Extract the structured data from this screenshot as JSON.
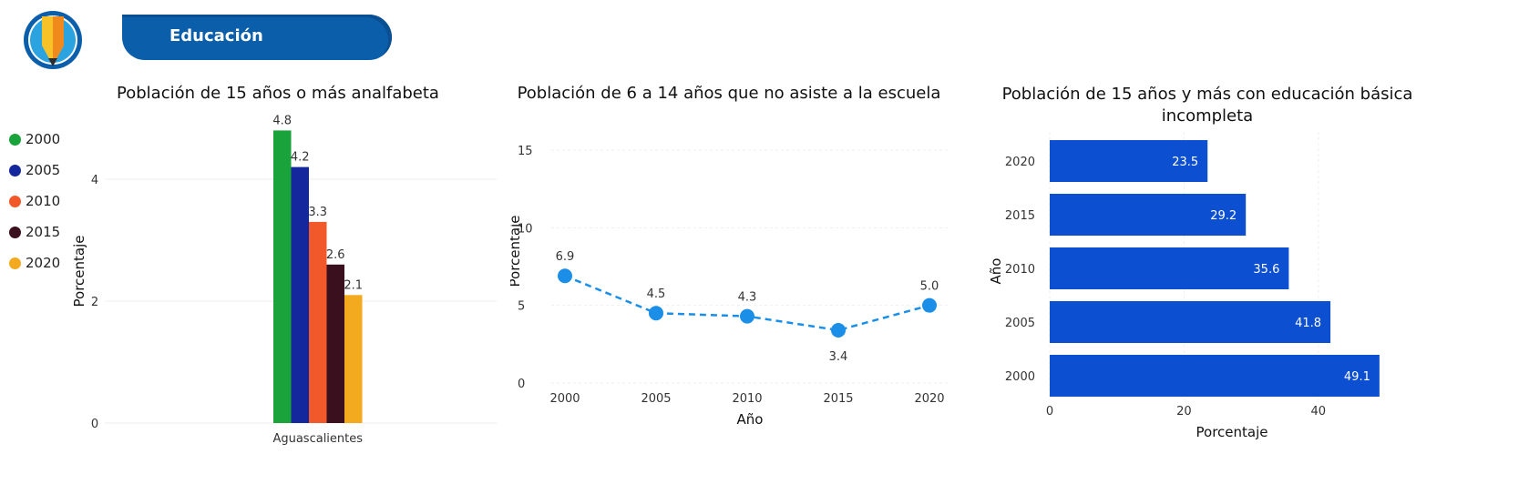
{
  "header": {
    "section_label": "Educación",
    "icon": "pencil-icon",
    "colors": {
      "tab": "#0b5eaa",
      "circle": "#0b5eaa"
    }
  },
  "chart_data": [
    {
      "type": "bar",
      "title": "Población de 15 años o más analfabeta",
      "categories": [
        "Aguascalientes"
      ],
      "series": [
        {
          "name": "2000",
          "values": [
            4.8
          ],
          "color": "#1aa33a"
        },
        {
          "name": "2005",
          "values": [
            4.2
          ],
          "color": "#14279c"
        },
        {
          "name": "2010",
          "values": [
            3.3
          ],
          "color": "#f2592a"
        },
        {
          "name": "2015",
          "values": [
            2.6
          ],
          "color": "#3a0f1e"
        },
        {
          "name": "2020",
          "values": [
            2.1
          ],
          "color": "#f4aa1e"
        }
      ],
      "xlabel": "",
      "ylabel": "Porcentaje",
      "ylim": [
        0,
        5
      ],
      "yticks": [
        0,
        2,
        4
      ],
      "legend": "left"
    },
    {
      "type": "line",
      "title": "Población de 6 a 14 años que no asiste a la escuela",
      "x": [
        "2000",
        "2005",
        "2010",
        "2015",
        "2020"
      ],
      "series": [
        {
          "values": [
            6.9,
            4.5,
            4.3,
            3.4,
            5.0
          ],
          "color": "#1b8fe8"
        }
      ],
      "xlabel": "Año",
      "ylabel": "Porcentaje",
      "ylim": [
        0,
        15
      ],
      "yticks": [
        0,
        5,
        10,
        15
      ]
    },
    {
      "type": "bar",
      "orientation": "horizontal",
      "title": "Población de 15 años y más con educación básica incompleta",
      "categories": [
        "2020",
        "2015",
        "2010",
        "2005",
        "2000"
      ],
      "values": [
        23.5,
        29.2,
        35.6,
        41.8,
        49.1
      ],
      "color": "#0d4fd1",
      "xlabel": "Porcentaje",
      "ylabel": "Año",
      "xlim": [
        0,
        50
      ],
      "xticks": [
        0,
        20,
        40
      ]
    }
  ]
}
